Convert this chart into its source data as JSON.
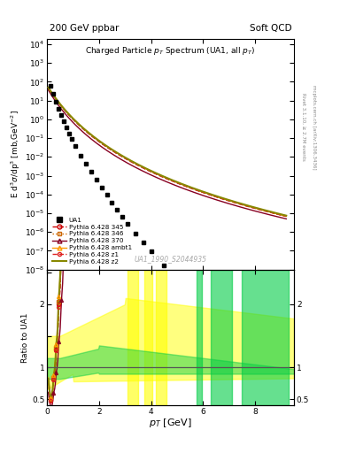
{
  "title_top": "200 GeV ppbar",
  "title_right": "Soft QCD",
  "plot_title": "Charged Particle $p_T$ Spectrum (UA1, all $p_T$)",
  "ylabel_main": "E d$^3\\sigma$/dp$^3$ [mb,GeV$^{-2}$]",
  "ylabel_ratio": "Ratio to UA1",
  "xlabel": "$p_T$ [GeV]",
  "watermark": "UA1_1990_S2044935",
  "right_label1": "Rivet 3.1.10, ≥ 2.7M events",
  "right_label2": "mcplots.cern.ch [arXiv:1306.3436]",
  "ylim_main": [
    1e-08,
    20000.0
  ],
  "xlim": [
    0,
    9.5
  ],
  "ylim_ratio": [
    0.4,
    2.55
  ],
  "colors": {
    "UA1": "#000000",
    "345": "#cc0000",
    "346": "#cc6600",
    "370": "#880022",
    "ambt1": "#ff9900",
    "z1": "#dd2222",
    "z2": "#888800"
  }
}
